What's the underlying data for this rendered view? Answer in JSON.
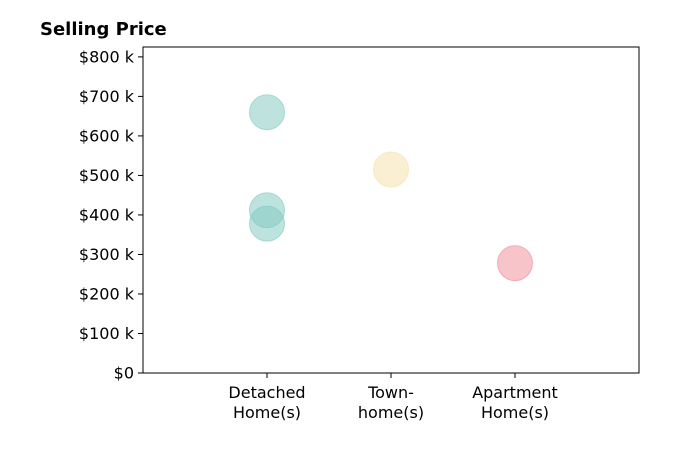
{
  "chart_data": {
    "type": "scatter",
    "title": "Selling Price",
    "xlabel": "",
    "ylabel": "",
    "categories": [
      [
        "Detached",
        "Home(s)"
      ],
      [
        "Town-",
        "home(s)"
      ],
      [
        "Apartment",
        "Home(s)"
      ]
    ],
    "xlim": [
      -1,
      3
    ],
    "ylim": [
      0,
      825
    ],
    "y_ticks": [
      0,
      100,
      200,
      300,
      400,
      500,
      600,
      700,
      800
    ],
    "y_tick_labels": [
      "$0",
      "$100 k",
      "$200 k",
      "$300 k",
      "$400 k",
      "$500 k",
      "$600 k",
      "$700 k",
      "$800 k"
    ],
    "y_unit": "thousand USD",
    "grid": false,
    "legend": "none",
    "colors": [
      "#7ec8c0",
      "#f5dfa6",
      "#f08a94"
    ],
    "points": [
      {
        "category": 0,
        "value": 660
      },
      {
        "category": 0,
        "value": 412
      },
      {
        "category": 0,
        "value": 378
      },
      {
        "category": 1,
        "value": 515
      },
      {
        "category": 2,
        "value": 278
      }
    ]
  }
}
